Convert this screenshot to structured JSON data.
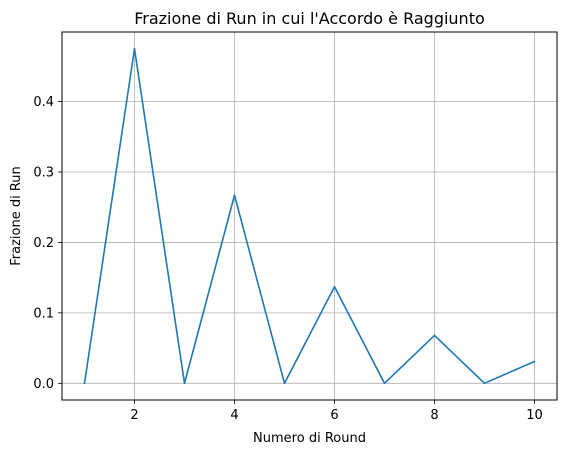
{
  "chart_data": {
    "type": "line",
    "title": "Frazione di Run in cui l'Accordo è Raggiunto",
    "xlabel": "Numero di Round",
    "ylabel": "Frazione di Run",
    "x": [
      1,
      2,
      3,
      4,
      5,
      6,
      7,
      8,
      9,
      10
    ],
    "series": [
      {
        "values": [
          0.0,
          0.475,
          0.0,
          0.267,
          0.0,
          0.137,
          0.0,
          0.068,
          0.0,
          0.031
        ],
        "color": "#1f77b4"
      }
    ],
    "xlim": [
      0.55,
      10.45
    ],
    "ylim": [
      -0.0237,
      0.4987
    ],
    "xticks": [
      "2",
      "4",
      "6",
      "8",
      "10"
    ],
    "yticks": [
      "0.0",
      "0.1",
      "0.2",
      "0.3",
      "0.4"
    ],
    "grid": true,
    "legend": "none"
  }
}
